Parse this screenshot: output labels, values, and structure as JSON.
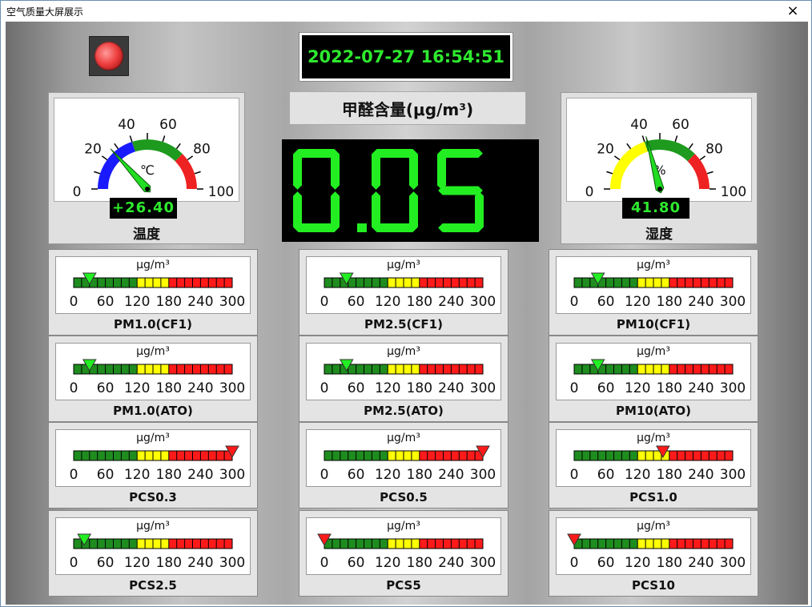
{
  "window": {
    "title": "空气质量大屏展示",
    "close_icon": "×"
  },
  "datetime": "2022-07-27 16:54:51",
  "hcho": {
    "label": "甲醛含量(μg/m³)",
    "value": "0.051"
  },
  "temperature": {
    "caption": "温度",
    "unit": "℃",
    "display": "+26.40",
    "value": 26.4,
    "scale": [
      "0",
      "20",
      "40",
      "60",
      "80",
      "100"
    ],
    "zones": [
      {
        "color": "#1a1aff"
      },
      {
        "color": "#1e9a1e"
      },
      {
        "color": "#ee2222"
      }
    ]
  },
  "humidity": {
    "caption": "湿度",
    "unit": "%",
    "display": "41.80",
    "value": 41.8,
    "scale": [
      "0",
      "20",
      "40",
      "60",
      "80",
      "100"
    ],
    "zones": [
      {
        "color": "#ffff00"
      },
      {
        "color": "#1e9a1e"
      },
      {
        "color": "#ee2222"
      }
    ]
  },
  "meter_common": {
    "unit": "μg/m³",
    "ticks": [
      "0",
      "60",
      "120",
      "180",
      "240",
      "300"
    ],
    "colors": {
      "green": "#1e8c1e",
      "yellow": "#ffff00",
      "red": "#ff1a1a",
      "ok_marker": "#22ee22",
      "alert_marker": "#ff1a1a"
    }
  },
  "meters": [
    {
      "label": "PM1.0(CF1)",
      "value": 30,
      "status": "ok"
    },
    {
      "label": "PM2.5(CF1)",
      "value": 42,
      "status": "ok"
    },
    {
      "label": "PM10(CF1)",
      "value": 45,
      "status": "ok"
    },
    {
      "label": "PM1.0(ATO)",
      "value": 30,
      "status": "ok"
    },
    {
      "label": "PM2.5(ATO)",
      "value": 42,
      "status": "ok"
    },
    {
      "label": "PM10(ATO)",
      "value": 45,
      "status": "ok"
    },
    {
      "label": "PCS0.3",
      "value": 300,
      "status": "alert"
    },
    {
      "label": "PCS0.5",
      "value": 300,
      "status": "alert"
    },
    {
      "label": "PCS1.0",
      "value": 168,
      "status": "alert"
    },
    {
      "label": "PCS2.5",
      "value": 20,
      "status": "ok"
    },
    {
      "label": "PCS5",
      "value": 0,
      "status": "alert"
    },
    {
      "label": "PCS10",
      "value": 0,
      "status": "alert"
    }
  ]
}
